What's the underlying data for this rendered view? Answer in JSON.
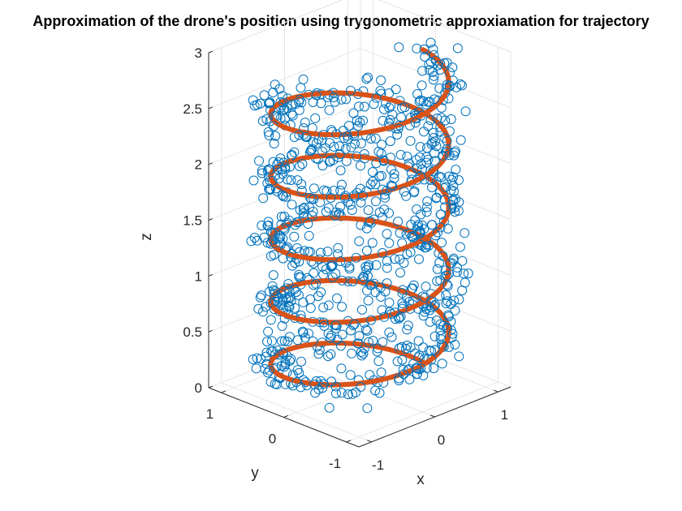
{
  "chart_data": {
    "type": "scatter",
    "title": "Approximation of the drone's position using trygonometric approxiamation for trajectory",
    "xlabel": "x",
    "ylabel": "y",
    "zlabel": "z",
    "xlim": [
      -1.2,
      1.2
    ],
    "ylim": [
      -1.2,
      1.2
    ],
    "zlim": [
      0,
      3
    ],
    "x_ticks": [
      "-1",
      "0",
      "1"
    ],
    "y_ticks": [
      "-1",
      "0",
      "1"
    ],
    "z_ticks": [
      "0",
      "0.5",
      "1",
      "1.5",
      "2",
      "2.5",
      "3"
    ],
    "grid": true,
    "series": [
      {
        "marker": "circle-open",
        "color": "#0072BD",
        "description": "measured helix, radius 1, 5 turns, z 0 to 2.8, with noise",
        "radius": 1,
        "turns": 5,
        "z_range": [
          0,
          2.8
        ],
        "noise": 0.12,
        "count": 900
      },
      {
        "marker": "line-thick",
        "color": "#D95319",
        "description": "approximated helix, radius 1, 5 turns, z 0 to 2.8",
        "radius": 1,
        "turns": 5,
        "z_range": [
          0,
          2.8
        ]
      }
    ]
  }
}
